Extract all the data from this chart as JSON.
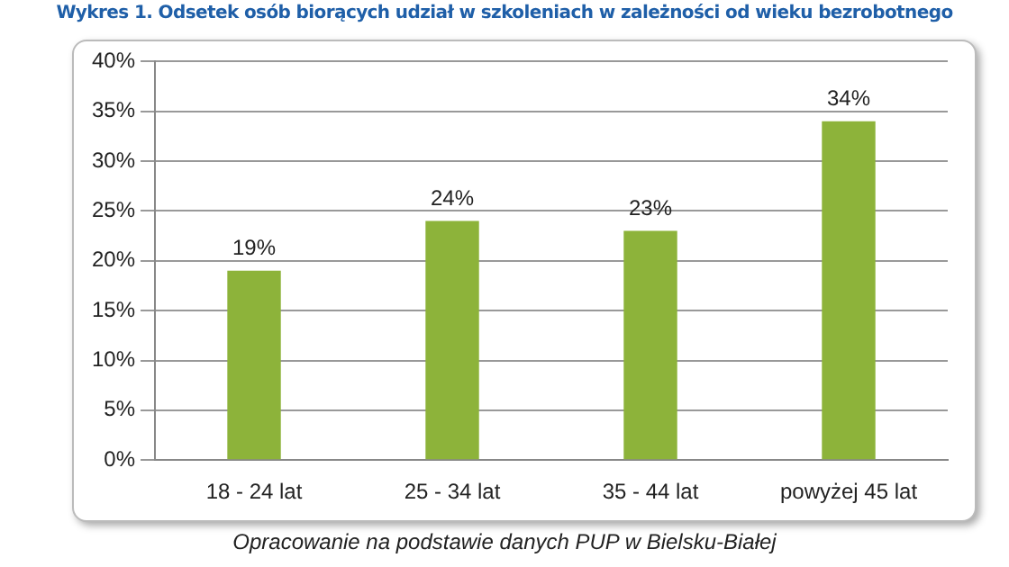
{
  "chart_data": {
    "type": "bar",
    "title": "Wykres 1. Odsetek osób biorących udział w szkoleniach w zależności od wieku bezrobotnego",
    "categories": [
      "18 - 24 lat",
      "25 - 34 lat",
      "35 - 44 lat",
      "powyżej 45 lat"
    ],
    "values": [
      19,
      24,
      23,
      34
    ],
    "color": "#8db33a",
    "value_labels": [
      "19%",
      "24%",
      "23%",
      "34%"
    ],
    "ylim": [
      0,
      40
    ],
    "yticks": [
      {
        "value": 0,
        "label": "0%"
      },
      {
        "value": 5,
        "label": "5%"
      },
      {
        "value": 10,
        "label": "10%"
      },
      {
        "value": 15,
        "label": "15%"
      },
      {
        "value": 20,
        "label": "20%"
      },
      {
        "value": 25,
        "label": "25%"
      },
      {
        "value": 30,
        "label": "30%"
      },
      {
        "value": 35,
        "label": "35%"
      },
      {
        "value": 40,
        "label": "40%"
      }
    ],
    "grid": "y",
    "legend": false,
    "annotations": [
      "Opracowanie na podstawie danych PUP w Bielsku-Białej"
    ]
  }
}
